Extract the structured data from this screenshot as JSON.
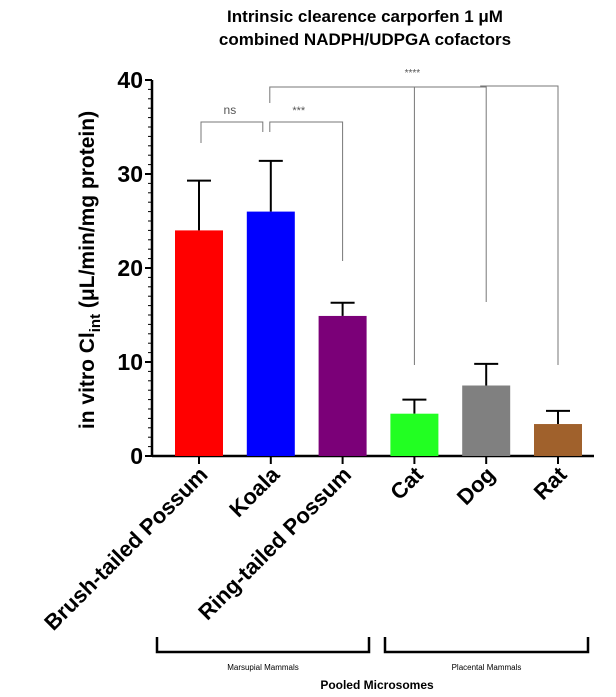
{
  "chart_data": {
    "type": "bar",
    "title_line1": "Intrinsic clearence  carporfen 1 μM",
    "title_line2": "combined NADPH/UDPGA cofactors",
    "ylabel_main": "in vitro Cl",
    "ylabel_sub": "int",
    "ylabel_unit": " (μL/min/mg protein)",
    "xlabel": "Pooled Microsomes",
    "ylim": [
      0,
      40
    ],
    "yticks": [
      "0",
      "10",
      "20",
      "30",
      "40"
    ],
    "grid": false,
    "categories": [
      "Brush-tailed Possum",
      "Koala",
      "Ring-tailed Possum",
      "Cat",
      "Dog",
      "Rat"
    ],
    "values": [
      24.0,
      26.0,
      14.9,
      4.5,
      7.5,
      3.4
    ],
    "error_upper": [
      29.3,
      31.4,
      16.3,
      6.0,
      9.8,
      4.8
    ],
    "colors": [
      "#ff0000",
      "#0000ff",
      "#7b0078",
      "#22ff22",
      "#808080",
      "#a0612c"
    ],
    "groups": [
      {
        "label": "Marsupial Mammals",
        "members": [
          "Brush-tailed Possum",
          "Koala",
          "Ring-tailed Possum"
        ]
      },
      {
        "label": "Placental Mammals",
        "members": [
          "Cat",
          "Dog",
          "Rat"
        ]
      }
    ],
    "significance": [
      {
        "label": "ns",
        "between": [
          "Brush-tailed Possum",
          "Koala"
        ]
      },
      {
        "label": "***",
        "between": [
          "Koala",
          "Ring-tailed Possum"
        ]
      },
      {
        "label": "****",
        "between": [
          "Koala",
          "Cat",
          "Dog",
          "Rat"
        ]
      }
    ]
  }
}
